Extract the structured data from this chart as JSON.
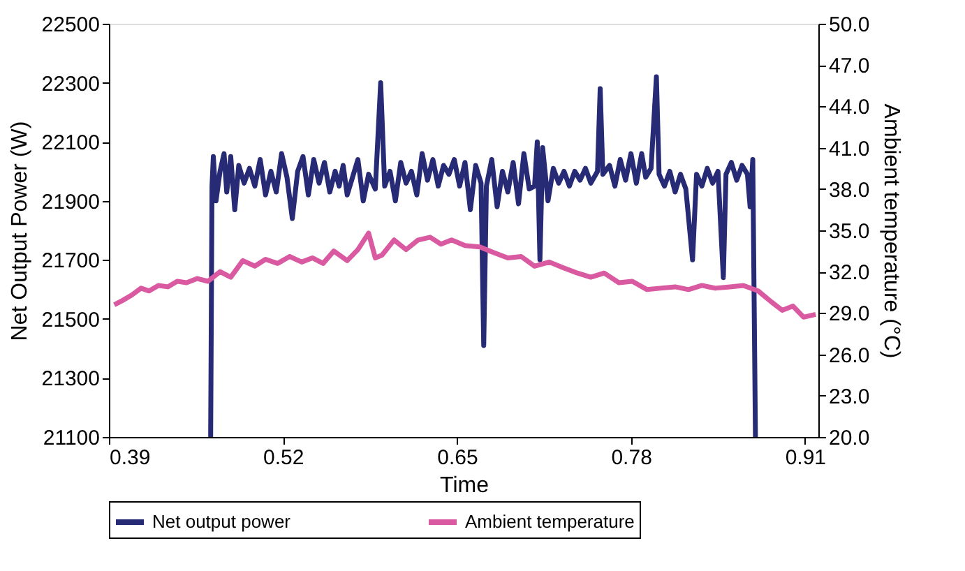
{
  "chart_data": {
    "type": "line",
    "xlabel": "Time",
    "ylabel": "Net Output Power (W)",
    "y2label": "Ambient temperature (°C)",
    "xlim": [
      0.39,
      0.92
    ],
    "xticks": [
      0.39,
      0.52,
      0.65,
      0.78,
      0.91
    ],
    "ylim": [
      21100,
      22500
    ],
    "yticks": [
      21100,
      21300,
      21500,
      21700,
      21900,
      22100,
      22300,
      22500
    ],
    "y2lim": [
      20,
      50
    ],
    "y2ticks": [
      {
        "value": 20,
        "label": "20.0"
      },
      {
        "value": 23,
        "label": "23.0"
      },
      {
        "value": 26,
        "label": "26.0"
      },
      {
        "value": 29,
        "label": "29.0"
      },
      {
        "value": 32,
        "label": "32.0"
      },
      {
        "value": 35,
        "label": "35.0"
      },
      {
        "value": 38,
        "label": "38.0"
      },
      {
        "value": 41,
        "label": "41.0"
      },
      {
        "value": 44,
        "label": "44.0"
      },
      {
        "value": 47,
        "label": "47.0"
      },
      {
        "value": 50,
        "label": "50.0"
      }
    ],
    "grid": false,
    "legend": "bottom",
    "marker": "none",
    "line_style": "solid",
    "series": [
      {
        "name": "Net output power",
        "color": "#272a74",
        "x": [
          0.466,
          0.467,
          0.468,
          0.47,
          0.473,
          0.476,
          0.478,
          0.481,
          0.484,
          0.487,
          0.491,
          0.495,
          0.499,
          0.503,
          0.507,
          0.511,
          0.515,
          0.519,
          0.523,
          0.527,
          0.531,
          0.535,
          0.539,
          0.543,
          0.547,
          0.551,
          0.555,
          0.559,
          0.562,
          0.565,
          0.568,
          0.572,
          0.576,
          0.58,
          0.584,
          0.589,
          0.593,
          0.596,
          0.6,
          0.604,
          0.608,
          0.612,
          0.616,
          0.62,
          0.624,
          0.628,
          0.632,
          0.636,
          0.64,
          0.644,
          0.648,
          0.652,
          0.656,
          0.66,
          0.664,
          0.668,
          0.67,
          0.672,
          0.676,
          0.68,
          0.684,
          0.688,
          0.692,
          0.696,
          0.7,
          0.704,
          0.708,
          0.71,
          0.712,
          0.714,
          0.718,
          0.722,
          0.726,
          0.73,
          0.734,
          0.738,
          0.742,
          0.746,
          0.75,
          0.755,
          0.757,
          0.759,
          0.764,
          0.768,
          0.772,
          0.776,
          0.78,
          0.784,
          0.788,
          0.791,
          0.795,
          0.799,
          0.801,
          0.805,
          0.809,
          0.813,
          0.817,
          0.821,
          0.826,
          0.829,
          0.833,
          0.837,
          0.841,
          0.845,
          0.849,
          0.851,
          0.855,
          0.859,
          0.863,
          0.867,
          0.869,
          0.871,
          0.873
        ],
        "values": [
          21100,
          21950,
          22050,
          21900,
          22000,
          22060,
          21930,
          22050,
          21870,
          22020,
          21960,
          22010,
          21950,
          22040,
          21920,
          22000,
          21930,
          22060,
          21980,
          21840,
          22000,
          22050,
          21920,
          22040,
          21960,
          22030,
          21930,
          22000,
          21950,
          22020,
          21920,
          21980,
          22040,
          21900,
          21990,
          21940,
          22300,
          21950,
          22000,
          21900,
          22030,
          21960,
          22000,
          21920,
          22060,
          21970,
          22040,
          21950,
          22020,
          21990,
          22040,
          21950,
          22030,
          21870,
          22020,
          21960,
          21410,
          21950,
          22040,
          21880,
          22000,
          21930,
          22030,
          21890,
          22060,
          21940,
          21950,
          22100,
          21700,
          22080,
          21900,
          22010,
          21960,
          22000,
          21950,
          22000,
          21970,
          22010,
          21960,
          22000,
          22280,
          21990,
          22020,
          21950,
          22040,
          21970,
          22060,
          21960,
          22060,
          21980,
          22010,
          22320,
          21990,
          21950,
          22000,
          21930,
          21990,
          21940,
          21700,
          21990,
          21950,
          22010,
          21960,
          22000,
          21640,
          21990,
          22030,
          21970,
          22020,
          21990,
          21880,
          22040,
          21100
        ]
      },
      {
        "name": "Ambient temperature",
        "color": "#d95aa0",
        "axis": "y2",
        "x": [
          0.394,
          0.4,
          0.407,
          0.414,
          0.42,
          0.427,
          0.434,
          0.441,
          0.448,
          0.456,
          0.464,
          0.473,
          0.481,
          0.49,
          0.499,
          0.507,
          0.516,
          0.525,
          0.534,
          0.542,
          0.55,
          0.558,
          0.568,
          0.576,
          0.584,
          0.589,
          0.594,
          0.603,
          0.612,
          0.621,
          0.63,
          0.638,
          0.646,
          0.656,
          0.667,
          0.677,
          0.688,
          0.698,
          0.708,
          0.719,
          0.729,
          0.74,
          0.75,
          0.76,
          0.771,
          0.781,
          0.792,
          0.802,
          0.813,
          0.823,
          0.833,
          0.843,
          0.854,
          0.864,
          0.875,
          0.88,
          0.885,
          0.893,
          0.901,
          0.909,
          0.918
        ],
        "values": [
          29.6,
          29.9,
          30.3,
          30.8,
          30.6,
          31.0,
          30.9,
          31.3,
          31.2,
          31.5,
          31.3,
          32.0,
          31.6,
          32.8,
          32.4,
          32.9,
          32.6,
          33.1,
          32.7,
          33.0,
          32.6,
          33.5,
          32.8,
          33.6,
          34.8,
          33.0,
          33.2,
          34.3,
          33.6,
          34.3,
          34.5,
          34.0,
          34.3,
          33.9,
          33.8,
          33.4,
          33.0,
          33.1,
          32.4,
          32.7,
          32.3,
          31.9,
          31.6,
          31.9,
          31.2,
          31.3,
          30.7,
          30.8,
          30.9,
          30.7,
          31.0,
          30.8,
          30.9,
          31.0,
          30.6,
          30.2,
          29.8,
          29.2,
          29.5,
          28.7,
          28.9
        ]
      }
    ]
  }
}
